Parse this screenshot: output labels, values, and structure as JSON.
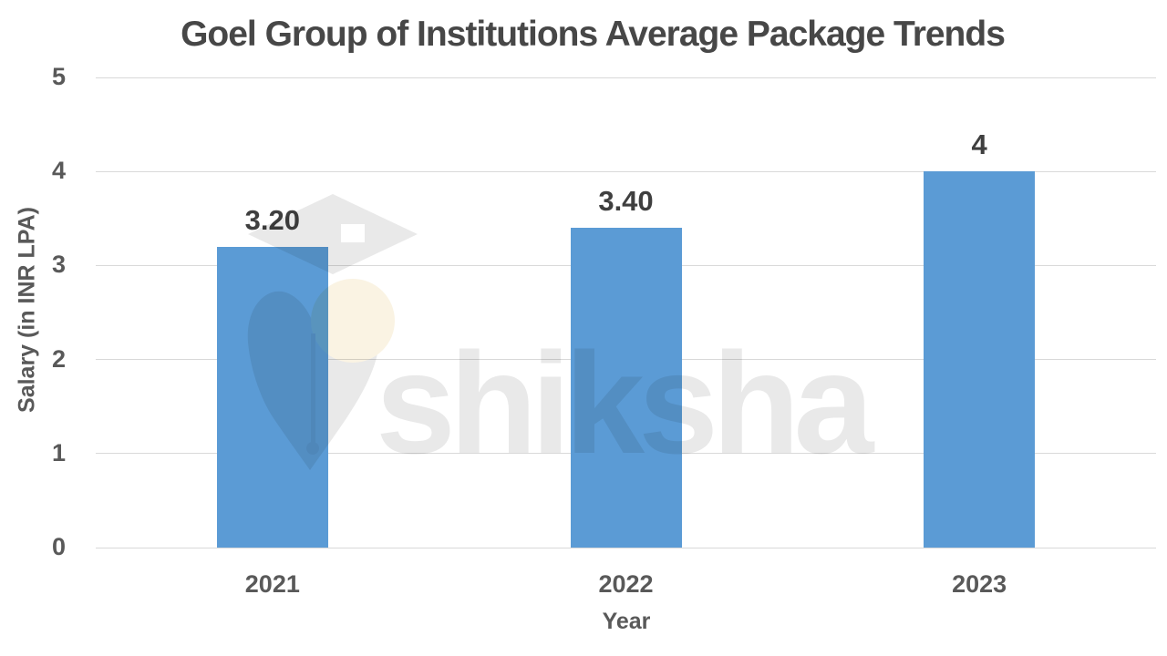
{
  "chart_data": {
    "type": "bar",
    "title": "Goel Group of Institutions Average Package Trends",
    "categories": [
      "2021",
      "2022",
      "2023"
    ],
    "values": [
      3.2,
      3.4,
      4
    ],
    "value_labels": [
      "3.20",
      "3.40",
      "4"
    ],
    "xlabel": "Year",
    "ylabel": "Salary (in INR LPA)",
    "ylim": [
      0,
      5
    ],
    "yticks": [
      0,
      1,
      2,
      3,
      4,
      5
    ],
    "grid": true,
    "legend": false,
    "bar_color": "#5b9bd5"
  },
  "watermark": {
    "text": "shiksha",
    "logo": "shiksha-graduation-cap-pen-nib-logo",
    "text_color": "#e9e9e9"
  },
  "colors": {
    "background": "#ffffff",
    "bar": "#5b9bd5",
    "grid": "#d9d9d9",
    "title_text": "#474747",
    "tick_text": "#595959",
    "value_label_text": "#3f3f3f",
    "watermark_gray": "#e9e9e9",
    "watermark_cream": "#faf3e3"
  }
}
